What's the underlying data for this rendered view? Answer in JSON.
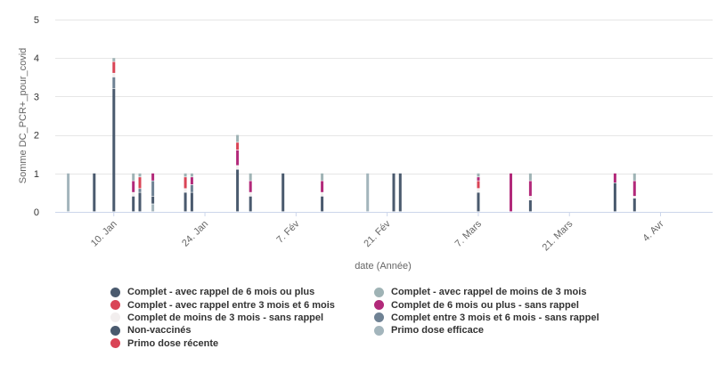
{
  "chart_data": {
    "type": "bar",
    "stacked": true,
    "xlabel": "date (Année)",
    "ylabel": "Somme DC_PCR+_pour_covid",
    "ylim": [
      0,
      5
    ],
    "y_ticks": [
      0,
      1,
      2,
      3,
      4,
      5
    ],
    "x_range": [
      "2022-01-01",
      "2022-04-12"
    ],
    "x_ticks": [
      {
        "date": "2022-01-10",
        "label": "10. Jan"
      },
      {
        "date": "2022-01-24",
        "label": "24. Jan"
      },
      {
        "date": "2022-02-07",
        "label": "7. Fév"
      },
      {
        "date": "2022-02-21",
        "label": "21. Fév"
      },
      {
        "date": "2022-03-07",
        "label": "7. Mars"
      },
      {
        "date": "2022-03-21",
        "label": "21. Mars"
      },
      {
        "date": "2022-04-04",
        "label": "4. Avr"
      }
    ],
    "grid": true,
    "legend_position": "bottom",
    "series": [
      {
        "name": "Non-vaccinés",
        "color": "#4a5a6e"
      },
      {
        "name": "Complet - avec rappel de 6 mois ou plus",
        "color": "#4a5a6e"
      },
      {
        "name": "Complet entre 3 mois et 6 mois - sans rappel",
        "color": "#6f8294"
      },
      {
        "name": "Primo dose efficace",
        "color": "#a3b5bc"
      },
      {
        "name": "Complet de moins de 3 mois - sans rappel",
        "color": "#f2eeee"
      },
      {
        "name": "Complet - avec rappel entre 3 mois et 6 mois",
        "color": "#d94456"
      },
      {
        "name": "Primo dose récente",
        "color": "#d94456"
      },
      {
        "name": "Complet de 6 mois ou plus - sans rappel",
        "color": "#b2297a"
      },
      {
        "name": "Complet - avec rappel de moins de 3 mois",
        "color": "#9fb3b5"
      }
    ],
    "points": [
      {
        "date": "2022-01-03",
        "stack": [
          {
            "series": "Primo dose efficace",
            "value": 1
          }
        ]
      },
      {
        "date": "2022-01-07",
        "stack": [
          {
            "series": "Non-vaccinés",
            "value": 1
          }
        ]
      },
      {
        "date": "2022-01-10",
        "stack": [
          {
            "series": "Non-vaccinés",
            "value": 3.2
          },
          {
            "series": "Complet entre 3 mois et 6 mois - sans rappel",
            "value": 0.3
          },
          {
            "series": "Complet de moins de 3 mois - sans rappel",
            "value": 0.1
          },
          {
            "series": "Complet - avec rappel entre 3 mois et 6 mois",
            "value": 0.3
          },
          {
            "series": "Complet - avec rappel de moins de 3 mois",
            "value": 0.1
          }
        ]
      },
      {
        "date": "2022-01-13",
        "stack": [
          {
            "series": "Non-vaccinés",
            "value": 0.4
          },
          {
            "series": "Complet de moins de 3 mois - sans rappel",
            "value": 0.1
          },
          {
            "series": "Complet de 6 mois ou plus - sans rappel",
            "value": 0.3
          },
          {
            "series": "Complet - avec rappel de moins de 3 mois",
            "value": 0.2
          }
        ]
      },
      {
        "date": "2022-01-14",
        "stack": [
          {
            "series": "Non-vaccinés",
            "value": 0.5
          },
          {
            "series": "Complet entre 3 mois et 6 mois - sans rappel",
            "value": 0.1
          },
          {
            "series": "Complet - avec rappel entre 3 mois et 6 mois",
            "value": 0.3
          },
          {
            "series": "Complet - avec rappel de moins de 3 mois",
            "value": 0.1
          }
        ]
      },
      {
        "date": "2022-01-16",
        "stack": [
          {
            "series": "Primo dose efficace",
            "value": 0.2
          },
          {
            "series": "Non-vaccinés",
            "value": 0.2
          },
          {
            "series": "Complet entre 3 mois et 6 mois - sans rappel",
            "value": 0.4
          },
          {
            "series": "Complet de 6 mois ou plus - sans rappel",
            "value": 0.2
          }
        ]
      },
      {
        "date": "2022-01-21",
        "stack": [
          {
            "series": "Non-vaccinés",
            "value": 0.5
          },
          {
            "series": "Complet de moins de 3 mois - sans rappel",
            "value": 0.1
          },
          {
            "series": "Complet - avec rappel entre 3 mois et 6 mois",
            "value": 0.3
          },
          {
            "series": "Complet - avec rappel de moins de 3 mois",
            "value": 0.1
          }
        ]
      },
      {
        "date": "2022-01-22",
        "stack": [
          {
            "series": "Non-vaccinés",
            "value": 0.5
          },
          {
            "series": "Complet entre 3 mois et 6 mois - sans rappel",
            "value": 0.2
          },
          {
            "series": "Complet de 6 mois ou plus - sans rappel",
            "value": 0.2
          },
          {
            "series": "Complet - avec rappel de moins de 3 mois",
            "value": 0.1
          }
        ]
      },
      {
        "date": "2022-01-29",
        "stack": [
          {
            "series": "Non-vaccinés",
            "value": 1.1
          },
          {
            "series": "Complet de moins de 3 mois - sans rappel",
            "value": 0.1
          },
          {
            "series": "Complet de 6 mois ou plus - sans rappel",
            "value": 0.4
          },
          {
            "series": "Complet - avec rappel entre 3 mois et 6 mois",
            "value": 0.2
          },
          {
            "series": "Complet - avec rappel de moins de 3 mois",
            "value": 0.2
          }
        ]
      },
      {
        "date": "2022-01-31",
        "stack": [
          {
            "series": "Non-vaccinés",
            "value": 0.4
          },
          {
            "series": "Complet de moins de 3 mois - sans rappel",
            "value": 0.1
          },
          {
            "series": "Complet de 6 mois ou plus - sans rappel",
            "value": 0.3
          },
          {
            "series": "Complet - avec rappel de moins de 3 mois",
            "value": 0.2
          }
        ]
      },
      {
        "date": "2022-02-05",
        "stack": [
          {
            "series": "Non-vaccinés",
            "value": 1
          }
        ]
      },
      {
        "date": "2022-02-11",
        "stack": [
          {
            "series": "Non-vaccinés",
            "value": 0.4
          },
          {
            "series": "Complet de moins de 3 mois - sans rappel",
            "value": 0.1
          },
          {
            "series": "Complet de 6 mois ou plus - sans rappel",
            "value": 0.3
          },
          {
            "series": "Complet - avec rappel de moins de 3 mois",
            "value": 0.2
          }
        ]
      },
      {
        "date": "2022-02-18",
        "stack": [
          {
            "series": "Primo dose efficace",
            "value": 1
          }
        ]
      },
      {
        "date": "2022-02-22",
        "stack": [
          {
            "series": "Non-vaccinés",
            "value": 1
          }
        ]
      },
      {
        "date": "2022-02-23",
        "stack": [
          {
            "series": "Non-vaccinés",
            "value": 1
          }
        ]
      },
      {
        "date": "2022-03-07",
        "stack": [
          {
            "series": "Non-vaccinés",
            "value": 0.5
          },
          {
            "series": "Complet de moins de 3 mois - sans rappel",
            "value": 0.1
          },
          {
            "series": "Complet - avec rappel entre 3 mois et 6 mois",
            "value": 0.2
          },
          {
            "series": "Complet de 6 mois ou plus - sans rappel",
            "value": 0.1
          },
          {
            "series": "Complet - avec rappel de moins de 3 mois",
            "value": 0.1
          }
        ]
      },
      {
        "date": "2022-03-12",
        "stack": [
          {
            "series": "Complet de 6 mois ou plus - sans rappel",
            "value": 1
          }
        ]
      },
      {
        "date": "2022-03-15",
        "stack": [
          {
            "series": "Non-vaccinés",
            "value": 0.3
          },
          {
            "series": "Complet de moins de 3 mois - sans rappel",
            "value": 0.1
          },
          {
            "series": "Complet de 6 mois ou plus - sans rappel",
            "value": 0.4
          },
          {
            "series": "Complet - avec rappel de moins de 3 mois",
            "value": 0.2
          }
        ]
      },
      {
        "date": "2022-03-28",
        "stack": [
          {
            "series": "Non-vaccinés",
            "value": 0.75
          },
          {
            "series": "Complet de 6 mois ou plus - sans rappel",
            "value": 0.25
          }
        ]
      },
      {
        "date": "2022-03-31",
        "stack": [
          {
            "series": "Non-vaccinés",
            "value": 0.35
          },
          {
            "series": "Complet de moins de 3 mois - sans rappel",
            "value": 0.05
          },
          {
            "series": "Complet de 6 mois ou plus - sans rappel",
            "value": 0.4
          },
          {
            "series": "Complet - avec rappel de moins de 3 mois",
            "value": 0.2
          }
        ]
      }
    ]
  },
  "legend": {
    "items": [
      {
        "label": "Complet - avec rappel de 6 mois ou plus",
        "color": "#4a5a6e"
      },
      {
        "label": "Complet - avec rappel de moins de 3 mois",
        "color": "#9fb3b5"
      },
      {
        "label": "Complet - avec rappel entre 3 mois et 6 mois",
        "color": "#d94456"
      },
      {
        "label": "Complet de 6 mois ou plus - sans rappel",
        "color": "#b2297a"
      },
      {
        "label": "Complet de moins de 3 mois - sans rappel",
        "color": "#f2eeee"
      },
      {
        "label": "Complet entre 3 mois et 6 mois - sans rappel",
        "color": "#6f8294"
      },
      {
        "label": "Non-vaccinés",
        "color": "#4a5a6e"
      },
      {
        "label": "Primo dose efficace",
        "color": "#a3b5bc"
      },
      {
        "label": "Primo dose récente",
        "color": "#d94456"
      }
    ]
  }
}
